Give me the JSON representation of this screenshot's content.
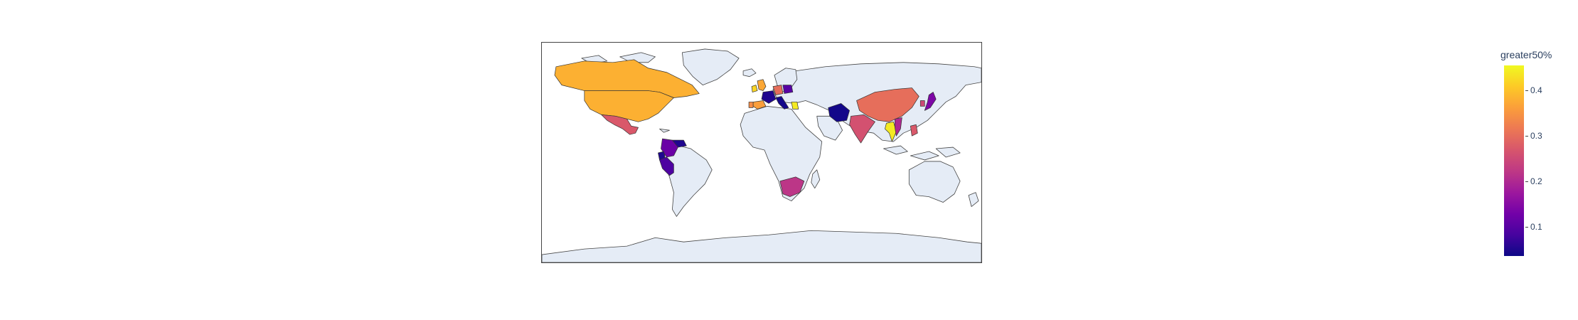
{
  "map": {
    "projection": "equirectangular",
    "land_color": "#e5ecf6",
    "border_color": "#444444",
    "countries": [
      {
        "name": "United States",
        "value": 0.38
      },
      {
        "name": "Canada",
        "value": 0.38
      },
      {
        "name": "Mexico",
        "value": 0.27
      },
      {
        "name": "Colombia",
        "value": 0.12
      },
      {
        "name": "Peru",
        "value": 0.09
      },
      {
        "name": "Ecuador",
        "value": 0.05
      },
      {
        "name": "Venezuela",
        "value": 0.05
      },
      {
        "name": "Ireland",
        "value": 0.42
      },
      {
        "name": "United Kingdom",
        "value": 0.37
      },
      {
        "name": "France",
        "value": 0.05
      },
      {
        "name": "Spain",
        "value": 0.36
      },
      {
        "name": "Portugal",
        "value": 0.34
      },
      {
        "name": "Italy",
        "value": 0.04
      },
      {
        "name": "Germany",
        "value": 0.3
      },
      {
        "name": "Poland",
        "value": 0.1
      },
      {
        "name": "Greece",
        "value": 0.44
      },
      {
        "name": "Iran",
        "value": 0.04
      },
      {
        "name": "India",
        "value": 0.26
      },
      {
        "name": "China",
        "value": 0.3
      },
      {
        "name": "Thailand",
        "value": 0.44
      },
      {
        "name": "Vietnam",
        "value": 0.2
      },
      {
        "name": "Philippines",
        "value": 0.27
      },
      {
        "name": "Japan",
        "value": 0.14
      },
      {
        "name": "South Korea",
        "value": 0.25
      },
      {
        "name": "South Africa",
        "value": 0.22
      }
    ]
  },
  "colorbar": {
    "title": "greater50%",
    "min": 0.035,
    "max": 0.455,
    "ticks": [
      {
        "value": 0.1,
        "label": "0.1"
      },
      {
        "value": 0.2,
        "label": "0.2"
      },
      {
        "value": 0.3,
        "label": "0.3"
      },
      {
        "value": 0.4,
        "label": "0.4"
      }
    ],
    "colorscale": [
      "#0d0887",
      "#46039f",
      "#7201a8",
      "#9c179e",
      "#bd3786",
      "#d8576b",
      "#ed7953",
      "#fb9f3a",
      "#fdca26",
      "#f0f921"
    ]
  }
}
